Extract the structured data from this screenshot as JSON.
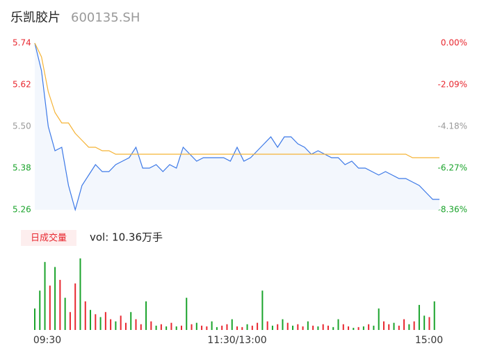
{
  "chart_data": [
    {
      "type": "line",
      "title": "乐凯胶片",
      "subtitle": "600135.SH",
      "x": [
        0,
        4,
        8,
        12,
        16,
        20,
        24,
        28,
        32,
        36,
        40,
        44,
        48,
        52,
        56,
        60,
        64,
        68,
        72,
        76,
        80,
        84,
        88,
        92,
        96,
        100,
        104,
        108,
        112,
        116,
        120,
        124,
        128,
        132,
        136,
        140,
        144,
        148,
        152,
        156,
        160,
        164,
        168,
        172,
        176,
        180,
        184,
        188,
        192,
        196,
        200,
        204,
        208,
        212,
        216,
        220,
        224,
        228,
        232,
        236,
        240
      ],
      "xlim": [
        0,
        240
      ],
      "series": [
        {
          "color": "#3b78e7",
          "values": [
            5.74,
            5.66,
            5.5,
            5.43,
            5.44,
            5.33,
            5.26,
            5.33,
            5.36,
            5.39,
            5.37,
            5.37,
            5.39,
            5.4,
            5.41,
            5.44,
            5.38,
            5.38,
            5.39,
            5.37,
            5.39,
            5.38,
            5.44,
            5.42,
            5.4,
            5.41,
            5.41,
            5.41,
            5.41,
            5.4,
            5.44,
            5.4,
            5.41,
            5.43,
            5.45,
            5.47,
            5.44,
            5.47,
            5.47,
            5.45,
            5.44,
            5.42,
            5.43,
            5.42,
            5.41,
            5.41,
            5.39,
            5.4,
            5.38,
            5.38,
            5.37,
            5.36,
            5.37,
            5.36,
            5.35,
            5.35,
            5.34,
            5.33,
            5.31,
            5.29,
            5.29
          ]
        },
        {
          "color": "#f5b335",
          "values": [
            5.74,
            5.7,
            5.6,
            5.54,
            5.51,
            5.51,
            5.48,
            5.46,
            5.44,
            5.44,
            5.43,
            5.43,
            5.42,
            5.42,
            5.42,
            5.42,
            5.42,
            5.42,
            5.42,
            5.42,
            5.42,
            5.42,
            5.42,
            5.42,
            5.42,
            5.42,
            5.42,
            5.42,
            5.42,
            5.42,
            5.42,
            5.42,
            5.42,
            5.42,
            5.42,
            5.42,
            5.42,
            5.42,
            5.42,
            5.42,
            5.42,
            5.42,
            5.42,
            5.42,
            5.42,
            5.42,
            5.42,
            5.42,
            5.42,
            5.42,
            5.42,
            5.42,
            5.42,
            5.42,
            5.42,
            5.42,
            5.41,
            5.41,
            5.41,
            5.41,
            5.41
          ]
        }
      ],
      "ylim": [
        5.26,
        5.74
      ],
      "yticks": [
        5.26,
        5.38,
        {
          "value": 5.5,
          "label": "5.50"
        },
        5.62,
        5.74
      ],
      "ytick_colors": [
        "#1aa32b",
        "#1aa32b",
        "#999999",
        "#e8272f",
        "#e8272f"
      ],
      "y2lim": [
        -8.36,
        0
      ],
      "y2ticks": [
        {
          "value": -8.36,
          "label": "-8.36%"
        },
        {
          "value": -6.27,
          "label": "-6.27%"
        },
        {
          "value": -4.18,
          "label": "-4.18%"
        },
        {
          "value": -2.09,
          "label": "-2.09%"
        },
        {
          "value": 0,
          "label": "0.00%"
        }
      ],
      "fill": "#f3f7fd"
    },
    {
      "type": "bar",
      "title": "日成交量",
      "subtitle": "vol: 10.36万手",
      "x": [
        0,
        3,
        6,
        9,
        12,
        15,
        18,
        21,
        24,
        27,
        30,
        33,
        36,
        39,
        42,
        45,
        48,
        51,
        54,
        57,
        60,
        63,
        66,
        69,
        72,
        75,
        78,
        81,
        84,
        87,
        90,
        93,
        96,
        99,
        102,
        105,
        108,
        111,
        114,
        117,
        120,
        123,
        126,
        129,
        132,
        135,
        138,
        141,
        144,
        147,
        150,
        153,
        156,
        159,
        162,
        165,
        168,
        171,
        174,
        177,
        180,
        183,
        186,
        189,
        192,
        195,
        198,
        201,
        204,
        207,
        210,
        213,
        216,
        219,
        222,
        225,
        228,
        231,
        234,
        237
      ],
      "xlim": [
        0,
        240
      ],
      "xticks": [
        {
          "value": 0,
          "label": "09:30"
        },
        {
          "value": 120,
          "label": "11:30/13:00"
        },
        {
          "value": 240,
          "label": "15:00"
        }
      ],
      "values": [
        30,
        55,
        95,
        62,
        88,
        70,
        45,
        25,
        65,
        100,
        40,
        28,
        22,
        18,
        25,
        15,
        12,
        20,
        10,
        25,
        15,
        8,
        40,
        12,
        6,
        8,
        5,
        10,
        5,
        6,
        45,
        8,
        10,
        6,
        5,
        12,
        4,
        6,
        8,
        15,
        5,
        4,
        8,
        6,
        10,
        55,
        12,
        6,
        8,
        15,
        10,
        6,
        8,
        5,
        12,
        6,
        5,
        8,
        6,
        4,
        15,
        8,
        5,
        3,
        4,
        5,
        8,
        6,
        30,
        12,
        8,
        10,
        6,
        15,
        8,
        12,
        35,
        20,
        18,
        40
      ],
      "colors": [
        "#1aa32b",
        "#1aa32b",
        "#1aa32b",
        "#e8272f",
        "#1aa32b",
        "#e8272f",
        "#1aa32b",
        "#e8272f",
        "#e8272f",
        "#1aa32b",
        "#e8272f",
        "#1aa32b",
        "#e8272f",
        "#1aa32b",
        "#e8272f",
        "#e8272f",
        "#1aa32b",
        "#e8272f",
        "#e8272f",
        "#1aa32b",
        "#e8272f",
        "#e8272f",
        "#1aa32b",
        "#e8272f",
        "#1aa32b",
        "#e8272f",
        "#1aa32b",
        "#e8272f",
        "#1aa32b",
        "#e8272f",
        "#1aa32b",
        "#e8272f",
        "#1aa32b",
        "#e8272f",
        "#e8272f",
        "#1aa32b",
        "#1aa32b",
        "#e8272f",
        "#e8272f",
        "#1aa32b",
        "#e8272f",
        "#e8272f",
        "#1aa32b",
        "#e8272f",
        "#e8272f",
        "#1aa32b",
        "#e8272f",
        "#1aa32b",
        "#e8272f",
        "#1aa32b",
        "#e8272f",
        "#1aa32b",
        "#e8272f",
        "#e8272f",
        "#1aa32b",
        "#e8272f",
        "#1aa32b",
        "#e8272f",
        "#e8272f",
        "#1aa32b",
        "#1aa32b",
        "#e8272f",
        "#e8272f",
        "#1aa32b",
        "#e8272f",
        "#1aa32b",
        "#e8272f",
        "#1aa32b",
        "#1aa32b",
        "#e8272f",
        "#e8272f",
        "#1aa32b",
        "#e8272f",
        "#e8272f",
        "#1aa32b",
        "#e8272f",
        "#1aa32b",
        "#1aa32b",
        "#e8272f",
        "#1aa32b"
      ]
    }
  ]
}
